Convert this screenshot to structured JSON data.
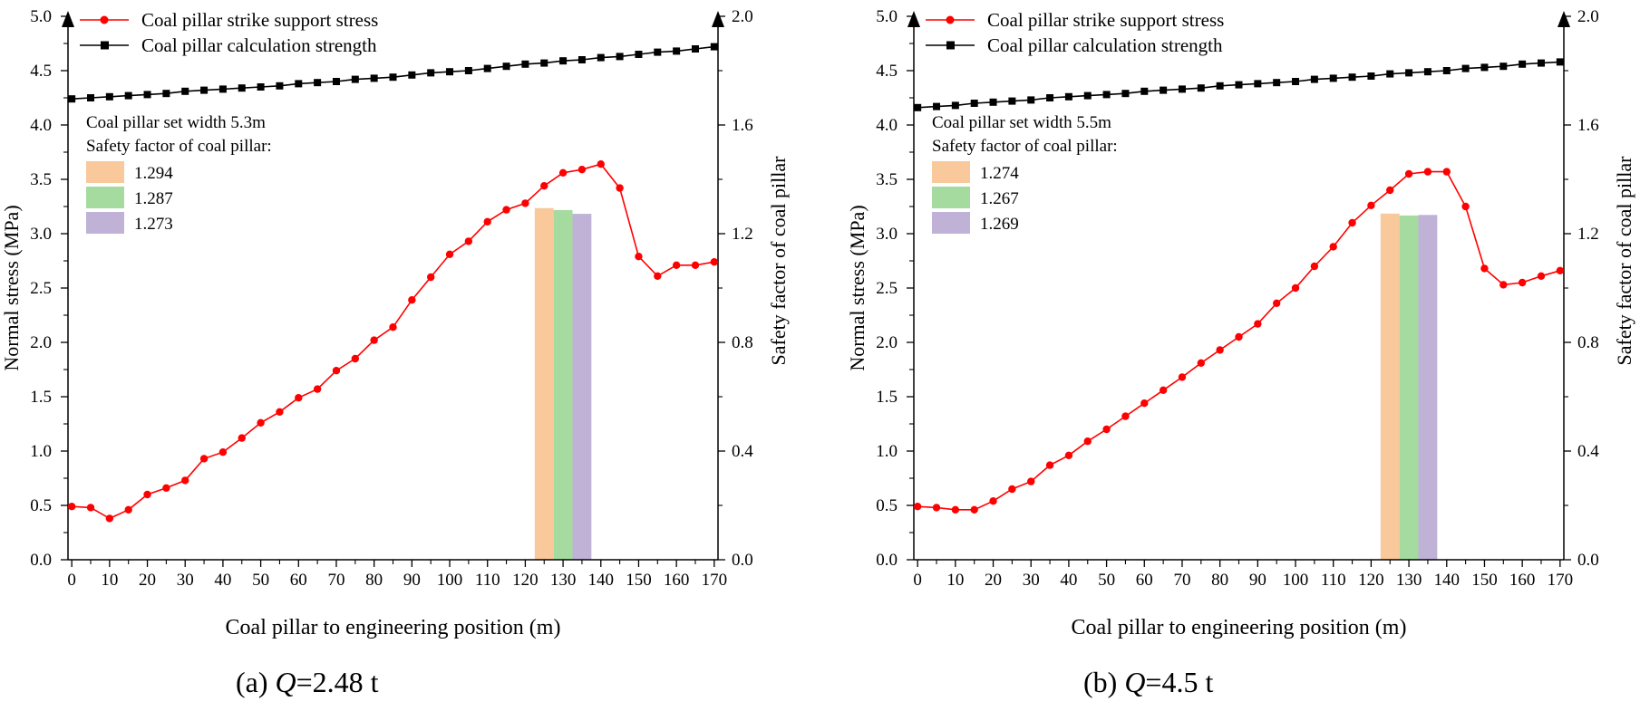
{
  "colors": {
    "stress": "#ff0000",
    "strength": "#000000",
    "bar1": "#f9c89b",
    "bar2": "#a6dba0",
    "bar3": "#bfb2d6"
  },
  "chart_data": [
    {
      "type": "line",
      "id": "a",
      "caption_prefix": "(a) ",
      "caption_var": "Q",
      "caption_suffix": "=2.48 t",
      "xlabel": "Coal pillar to engineering position (m)",
      "ylabel_left": "Normal stress (MPa)",
      "ylabel_right": "Safety factor of coal pillar",
      "xlim": [
        -1,
        171
      ],
      "ylim_left": [
        0,
        5
      ],
      "ylim_right": [
        0,
        2
      ],
      "x_ticks": [
        0,
        10,
        20,
        30,
        40,
        50,
        60,
        70,
        80,
        90,
        100,
        110,
        120,
        130,
        140,
        150,
        160,
        170
      ],
      "y_ticks_left": [
        "0.0",
        "0.5",
        "1.0",
        "1.5",
        "2.0",
        "2.5",
        "3.0",
        "3.5",
        "4.0",
        "4.5",
        "5.0"
      ],
      "y_ticks_right": [
        "0.0",
        "0.4",
        "0.8",
        "1.2",
        "1.6",
        "2.0"
      ],
      "series": [
        {
          "name": "Coal pillar strike support stress",
          "color_key": "stress",
          "marker": "circle",
          "x": [
            0,
            5,
            10,
            15,
            20,
            25,
            30,
            35,
            40,
            45,
            50,
            55,
            60,
            65,
            70,
            75,
            80,
            85,
            90,
            95,
            100,
            105,
            110,
            115,
            120,
            125,
            130,
            135,
            140,
            145,
            150,
            155,
            160,
            165,
            170
          ],
          "values": [
            0.49,
            0.48,
            0.38,
            0.46,
            0.6,
            0.66,
            0.73,
            0.93,
            0.99,
            1.12,
            1.26,
            1.36,
            1.49,
            1.57,
            1.74,
            1.85,
            2.02,
            2.14,
            2.39,
            2.6,
            2.81,
            2.93,
            3.11,
            3.22,
            3.28,
            3.44,
            3.56,
            3.59,
            3.64,
            3.42,
            2.79,
            2.61,
            2.71,
            2.71,
            2.74
          ]
        },
        {
          "name": "Coal pillar calculation strength",
          "color_key": "strength",
          "marker": "square",
          "x": [
            0,
            5,
            10,
            15,
            20,
            25,
            30,
            35,
            40,
            45,
            50,
            55,
            60,
            65,
            70,
            75,
            80,
            85,
            90,
            95,
            100,
            105,
            110,
            115,
            120,
            125,
            130,
            135,
            140,
            145,
            150,
            155,
            160,
            165,
            170
          ],
          "values": [
            4.24,
            4.25,
            4.26,
            4.27,
            4.28,
            4.29,
            4.31,
            4.32,
            4.33,
            4.34,
            4.35,
            4.36,
            4.38,
            4.39,
            4.4,
            4.42,
            4.43,
            4.44,
            4.46,
            4.48,
            4.49,
            4.5,
            4.52,
            4.54,
            4.56,
            4.57,
            4.59,
            4.6,
            4.62,
            4.63,
            4.65,
            4.67,
            4.68,
            4.7,
            4.72
          ]
        }
      ],
      "bars": {
        "x_start": [
          122.5,
          127.5,
          132.5
        ],
        "width": 5,
        "values": [
          1.294,
          1.287,
          1.273
        ]
      },
      "legend_position": "top-left",
      "info_title": "Coal pillar set width 5.3m",
      "info_subtitle": "Safety factor of coal pillar:",
      "info_values": [
        "1.294",
        "1.287",
        "1.273"
      ]
    },
    {
      "type": "line",
      "id": "b",
      "caption_prefix": "(b) ",
      "caption_var": "Q",
      "caption_suffix": "=4.5 t",
      "xlabel": "Coal pillar to engineering position (m)",
      "ylabel_left": "Normal stress (MPa)",
      "ylabel_right": "Safety factor of coal pillar",
      "xlim": [
        -1,
        171
      ],
      "ylim_left": [
        0,
        5
      ],
      "ylim_right": [
        0,
        2
      ],
      "x_ticks": [
        0,
        10,
        20,
        30,
        40,
        50,
        60,
        70,
        80,
        90,
        100,
        110,
        120,
        130,
        140,
        150,
        160,
        170
      ],
      "y_ticks_left": [
        "0.0",
        "0.5",
        "1.0",
        "1.5",
        "2.0",
        "2.5",
        "3.0",
        "3.5",
        "4.0",
        "4.5",
        "5.0"
      ],
      "y_ticks_right": [
        "0.0",
        "0.4",
        "0.8",
        "1.2",
        "1.6",
        "2.0"
      ],
      "series": [
        {
          "name": "Coal pillar strike support stress",
          "color_key": "stress",
          "marker": "circle",
          "x": [
            0,
            5,
            10,
            15,
            20,
            25,
            30,
            35,
            40,
            45,
            50,
            55,
            60,
            65,
            70,
            75,
            80,
            85,
            90,
            95,
            100,
            105,
            110,
            115,
            120,
            125,
            130,
            135,
            140,
            145,
            150,
            155,
            160,
            165,
            170
          ],
          "values": [
            0.49,
            0.48,
            0.46,
            0.46,
            0.54,
            0.65,
            0.72,
            0.87,
            0.96,
            1.09,
            1.2,
            1.32,
            1.44,
            1.56,
            1.68,
            1.81,
            1.93,
            2.05,
            2.17,
            2.36,
            2.5,
            2.7,
            2.88,
            3.1,
            3.26,
            3.4,
            3.55,
            3.57,
            3.57,
            3.25,
            2.68,
            2.53,
            2.55,
            2.61,
            2.66
          ]
        },
        {
          "name": "Coal pillar calculation strength",
          "color_key": "strength",
          "marker": "square",
          "x": [
            0,
            5,
            10,
            15,
            20,
            25,
            30,
            35,
            40,
            45,
            50,
            55,
            60,
            65,
            70,
            75,
            80,
            85,
            90,
            95,
            100,
            105,
            110,
            115,
            120,
            125,
            130,
            135,
            140,
            145,
            150,
            155,
            160,
            165,
            170
          ],
          "values": [
            4.16,
            4.17,
            4.18,
            4.2,
            4.21,
            4.22,
            4.23,
            4.25,
            4.26,
            4.27,
            4.28,
            4.29,
            4.31,
            4.32,
            4.33,
            4.34,
            4.36,
            4.37,
            4.38,
            4.39,
            4.4,
            4.42,
            4.43,
            4.44,
            4.45,
            4.47,
            4.48,
            4.49,
            4.5,
            4.52,
            4.53,
            4.54,
            4.56,
            4.57,
            4.58
          ]
        }
      ],
      "bars": {
        "x_start": [
          122.5,
          127.5,
          132.5
        ],
        "width": 5,
        "values": [
          1.274,
          1.267,
          1.269
        ]
      },
      "legend_position": "top-left",
      "info_title": "Coal pillar set width 5.5m",
      "info_subtitle": "Safety factor of coal pillar:",
      "info_values": [
        "1.274",
        "1.267",
        "1.269"
      ]
    }
  ]
}
